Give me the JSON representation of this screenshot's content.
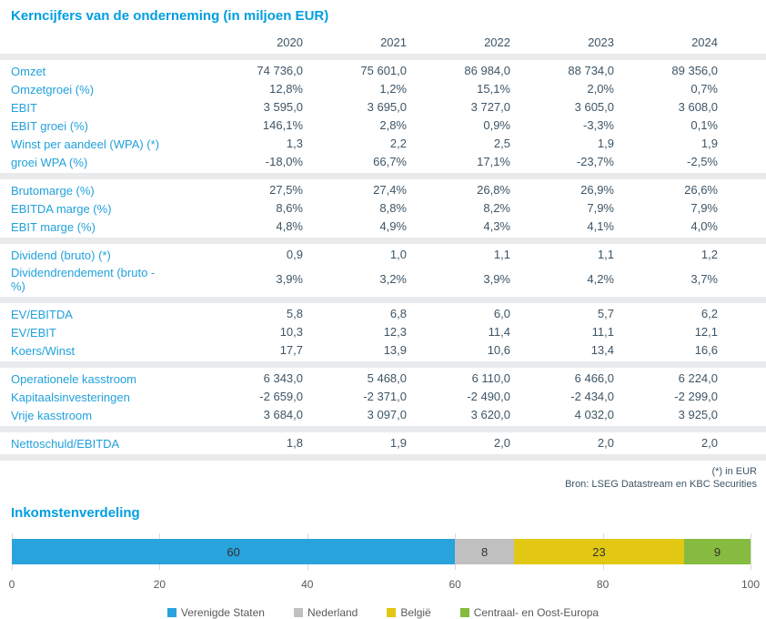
{
  "page": {
    "table_title": "Kerncijfers van de onderneming (in miljoen EUR)",
    "footnote": "(*) in EUR",
    "source": "Bron: LSEG Datastream en KBC Securities"
  },
  "table": {
    "years": [
      "2020",
      "2021",
      "2022",
      "2023",
      "2024"
    ],
    "blocks": [
      {
        "rows": [
          {
            "label": "Omzet",
            "values": [
              "74 736,0",
              "75 601,0",
              "86 984,0",
              "88 734,0",
              "89 356,0"
            ]
          },
          {
            "label": "Omzetgroei (%)",
            "values": [
              "12,8%",
              "1,2%",
              "15,1%",
              "2,0%",
              "0,7%"
            ]
          },
          {
            "label": "EBIT",
            "values": [
              "3 595,0",
              "3 695,0",
              "3 727,0",
              "3 605,0",
              "3 608,0"
            ]
          },
          {
            "label": "EBIT groei (%)",
            "values": [
              "146,1%",
              "2,8%",
              "0,9%",
              "-3,3%",
              "0,1%"
            ]
          },
          {
            "label": "Winst per aandeel (WPA) (*)",
            "values": [
              "1,3",
              "2,2",
              "2,5",
              "1,9",
              "1,9"
            ]
          },
          {
            "label": "groei WPA (%)",
            "values": [
              "-18,0%",
              "66,7%",
              "17,1%",
              "-23,7%",
              "-2,5%"
            ]
          }
        ]
      },
      {
        "rows": [
          {
            "label": "Brutomarge (%)",
            "values": [
              "27,5%",
              "27,4%",
              "26,8%",
              "26,9%",
              "26,6%"
            ]
          },
          {
            "label": "EBITDA marge (%)",
            "values": [
              "8,6%",
              "8,8%",
              "8,2%",
              "7,9%",
              "7,9%"
            ]
          },
          {
            "label": "EBIT marge (%)",
            "values": [
              "4,8%",
              "4,9%",
              "4,3%",
              "4,1%",
              "4,0%"
            ]
          }
        ]
      },
      {
        "rows": [
          {
            "label": "Dividend (bruto) (*)",
            "values": [
              "0,9",
              "1,0",
              "1,1",
              "1,1",
              "1,2"
            ]
          },
          {
            "label": "Dividendrendement (bruto - %)",
            "values": [
              "3,9%",
              "3,2%",
              "3,9%",
              "4,2%",
              "3,7%"
            ]
          }
        ]
      },
      {
        "rows": [
          {
            "label": "EV/EBITDA",
            "values": [
              "5,8",
              "6,8",
              "6,0",
              "5,7",
              "6,2"
            ]
          },
          {
            "label": "EV/EBIT",
            "values": [
              "10,3",
              "12,3",
              "11,4",
              "11,1",
              "12,1"
            ]
          },
          {
            "label": "Koers/Winst",
            "values": [
              "17,7",
              "13,9",
              "10,6",
              "13,4",
              "16,6"
            ]
          }
        ]
      },
      {
        "rows": [
          {
            "label": "Operationele kasstroom",
            "values": [
              "6 343,0",
              "5 468,0",
              "6 110,0",
              "6 466,0",
              "6 224,0"
            ]
          },
          {
            "label": "Kapitaalsinvesteringen",
            "values": [
              "-2 659,0",
              "-2 371,0",
              "-2 490,0",
              "-2 434,0",
              "-2 299,0"
            ]
          },
          {
            "label": "Vrije kasstroom",
            "values": [
              "3 684,0",
              "3 097,0",
              "3 620,0",
              "4 032,0",
              "3 925,0"
            ]
          }
        ]
      },
      {
        "rows": [
          {
            "label": "Nettoschuld/EBITDA",
            "values": [
              "1,8",
              "1,9",
              "2,0",
              "2,0",
              "2,0"
            ]
          }
        ]
      }
    ]
  },
  "chart_data": {
    "type": "bar",
    "orientation": "horizontal",
    "stacked": true,
    "title": "Inkomstenverdeling",
    "xlim": [
      0,
      100
    ],
    "x_ticks": [
      0,
      20,
      40,
      60,
      80,
      100
    ],
    "grid": true,
    "legend_position": "bottom",
    "segments": [
      {
        "label": "Verenigde Staten",
        "value": 60,
        "color": "#29A3DC"
      },
      {
        "label": "Nederland",
        "value": 8,
        "color": "#C0C0C0"
      },
      {
        "label": "België",
        "value": 23,
        "color": "#E2C714"
      },
      {
        "label": "Centraal- en Oost-Europa",
        "value": 9,
        "color": "#85BB3F"
      }
    ]
  },
  "colors": {
    "title_blue": "#009EE0",
    "row_label_blue": "#21A1DB",
    "value_text": "#3E5566",
    "divider_band": "#E8EAEB",
    "gridline": "#D9D9D9",
    "axis_text": "#595959"
  }
}
